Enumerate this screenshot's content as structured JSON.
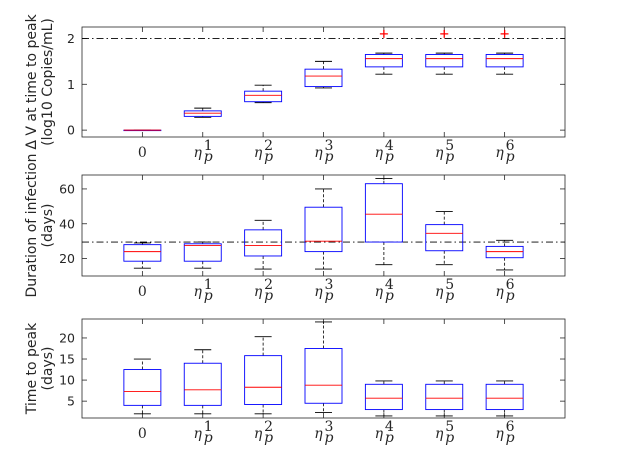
{
  "colors": {
    "box": "#0000ff",
    "median": "#ff0000",
    "whisker": "#000000",
    "outlier": "#ff0000",
    "reference": "#000000",
    "axes": "#262626"
  },
  "chart_data": [
    {
      "type": "boxplot",
      "ylabel": "Δ V at time to peak",
      "ylabel2": "(log10 Copies/mL)",
      "ylim": [
        -0.15,
        2.25
      ],
      "yticks": [
        0,
        1,
        2
      ],
      "reference_line": 2.0,
      "categories": [
        {
          "base": "0",
          "sup": ""
        },
        {
          "base": "η",
          "sub": "p",
          "sup": "1"
        },
        {
          "base": "η",
          "sub": "p",
          "sup": "2"
        },
        {
          "base": "η",
          "sub": "p",
          "sup": "3"
        },
        {
          "base": "η",
          "sub": "p",
          "sup": "4"
        },
        {
          "base": "η",
          "sub": "p",
          "sup": "5"
        },
        {
          "base": "η",
          "sub": "p",
          "sup": "6"
        }
      ],
      "boxes": [
        {
          "lower_whisker": 0.0,
          "q1": 0.0,
          "median": 0.0,
          "q3": 0.0,
          "upper_whisker": 0.0,
          "outliers": []
        },
        {
          "lower_whisker": 0.28,
          "q1": 0.3,
          "median": 0.37,
          "q3": 0.42,
          "upper_whisker": 0.48,
          "outliers": []
        },
        {
          "lower_whisker": 0.6,
          "q1": 0.62,
          "median": 0.76,
          "q3": 0.85,
          "upper_whisker": 0.98,
          "outliers": []
        },
        {
          "lower_whisker": 0.92,
          "q1": 0.95,
          "median": 1.18,
          "q3": 1.33,
          "upper_whisker": 1.5,
          "outliers": []
        },
        {
          "lower_whisker": 1.22,
          "q1": 1.38,
          "median": 1.56,
          "q3": 1.65,
          "upper_whisker": 1.68,
          "outliers": [
            2.1
          ]
        },
        {
          "lower_whisker": 1.22,
          "q1": 1.38,
          "median": 1.56,
          "q3": 1.65,
          "upper_whisker": 1.68,
          "outliers": [
            2.1
          ]
        },
        {
          "lower_whisker": 1.22,
          "q1": 1.38,
          "median": 1.56,
          "q3": 1.65,
          "upper_whisker": 1.68,
          "outliers": [
            2.1
          ]
        }
      ]
    },
    {
      "type": "boxplot",
      "ylabel": "Duration of infection",
      "ylabel2": "(days)",
      "ylim": [
        10,
        68
      ],
      "yticks": [
        20,
        40,
        60
      ],
      "reference_line": 29.5,
      "categories": [
        {
          "base": "0",
          "sup": ""
        },
        {
          "base": "η",
          "sub": "p",
          "sup": "1"
        },
        {
          "base": "η",
          "sub": "p",
          "sup": "2"
        },
        {
          "base": "η",
          "sub": "p",
          "sup": "3"
        },
        {
          "base": "η",
          "sub": "p",
          "sup": "4"
        },
        {
          "base": "η",
          "sub": "p",
          "sup": "5"
        },
        {
          "base": "η",
          "sub": "p",
          "sup": "6"
        }
      ],
      "boxes": [
        {
          "lower_whisker": 14.5,
          "q1": 18.5,
          "median": 24.0,
          "q3": 28.0,
          "upper_whisker": 29.0,
          "outliers": []
        },
        {
          "lower_whisker": 14.5,
          "q1": 18.5,
          "median": 27.5,
          "q3": 28.5,
          "upper_whisker": 29.5,
          "outliers": []
        },
        {
          "lower_whisker": 14.0,
          "q1": 21.5,
          "median": 27.5,
          "q3": 36.5,
          "upper_whisker": 42.0,
          "outliers": []
        },
        {
          "lower_whisker": 14.0,
          "q1": 24.0,
          "median": 30.0,
          "q3": 49.5,
          "upper_whisker": 60.0,
          "outliers": []
        },
        {
          "lower_whisker": 16.5,
          "q1": 29.5,
          "median": 45.5,
          "q3": 63.0,
          "upper_whisker": 66.0,
          "outliers": []
        },
        {
          "lower_whisker": 16.5,
          "q1": 24.5,
          "median": 34.5,
          "q3": 39.5,
          "upper_whisker": 47.0,
          "outliers": []
        },
        {
          "lower_whisker": 13.5,
          "q1": 20.5,
          "median": 24.0,
          "q3": 27.0,
          "upper_whisker": 30.5,
          "outliers": []
        }
      ]
    },
    {
      "type": "boxplot",
      "ylabel": "Time to peak",
      "ylabel2": "(days)",
      "ylim": [
        1,
        24.5
      ],
      "yticks": [
        5,
        10,
        15,
        20
      ],
      "reference_line": null,
      "categories": [
        {
          "base": "0",
          "sup": ""
        },
        {
          "base": "η",
          "sub": "p",
          "sup": "1"
        },
        {
          "base": "η",
          "sub": "p",
          "sup": "2"
        },
        {
          "base": "η",
          "sub": "p",
          "sup": "3"
        },
        {
          "base": "η",
          "sub": "p",
          "sup": "4"
        },
        {
          "base": "η",
          "sub": "p",
          "sup": "5"
        },
        {
          "base": "η",
          "sub": "p",
          "sup": "6"
        }
      ],
      "boxes": [
        {
          "lower_whisker": 2.0,
          "q1": 4.0,
          "median": 7.3,
          "q3": 12.5,
          "upper_whisker": 15.0,
          "outliers": []
        },
        {
          "lower_whisker": 2.0,
          "q1": 4.0,
          "median": 7.7,
          "q3": 14.0,
          "upper_whisker": 17.2,
          "outliers": []
        },
        {
          "lower_whisker": 2.0,
          "q1": 4.2,
          "median": 8.3,
          "q3": 15.8,
          "upper_whisker": 20.3,
          "outliers": []
        },
        {
          "lower_whisker": 2.3,
          "q1": 4.5,
          "median": 8.8,
          "q3": 17.5,
          "upper_whisker": 23.8,
          "outliers": []
        },
        {
          "lower_whisker": 1.5,
          "q1": 3.0,
          "median": 5.7,
          "q3": 9.0,
          "upper_whisker": 9.8,
          "outliers": []
        },
        {
          "lower_whisker": 1.5,
          "q1": 3.0,
          "median": 5.7,
          "q3": 9.0,
          "upper_whisker": 9.8,
          "outliers": []
        },
        {
          "lower_whisker": 1.5,
          "q1": 3.0,
          "median": 5.7,
          "q3": 9.0,
          "upper_whisker": 9.8,
          "outliers": []
        }
      ]
    }
  ]
}
